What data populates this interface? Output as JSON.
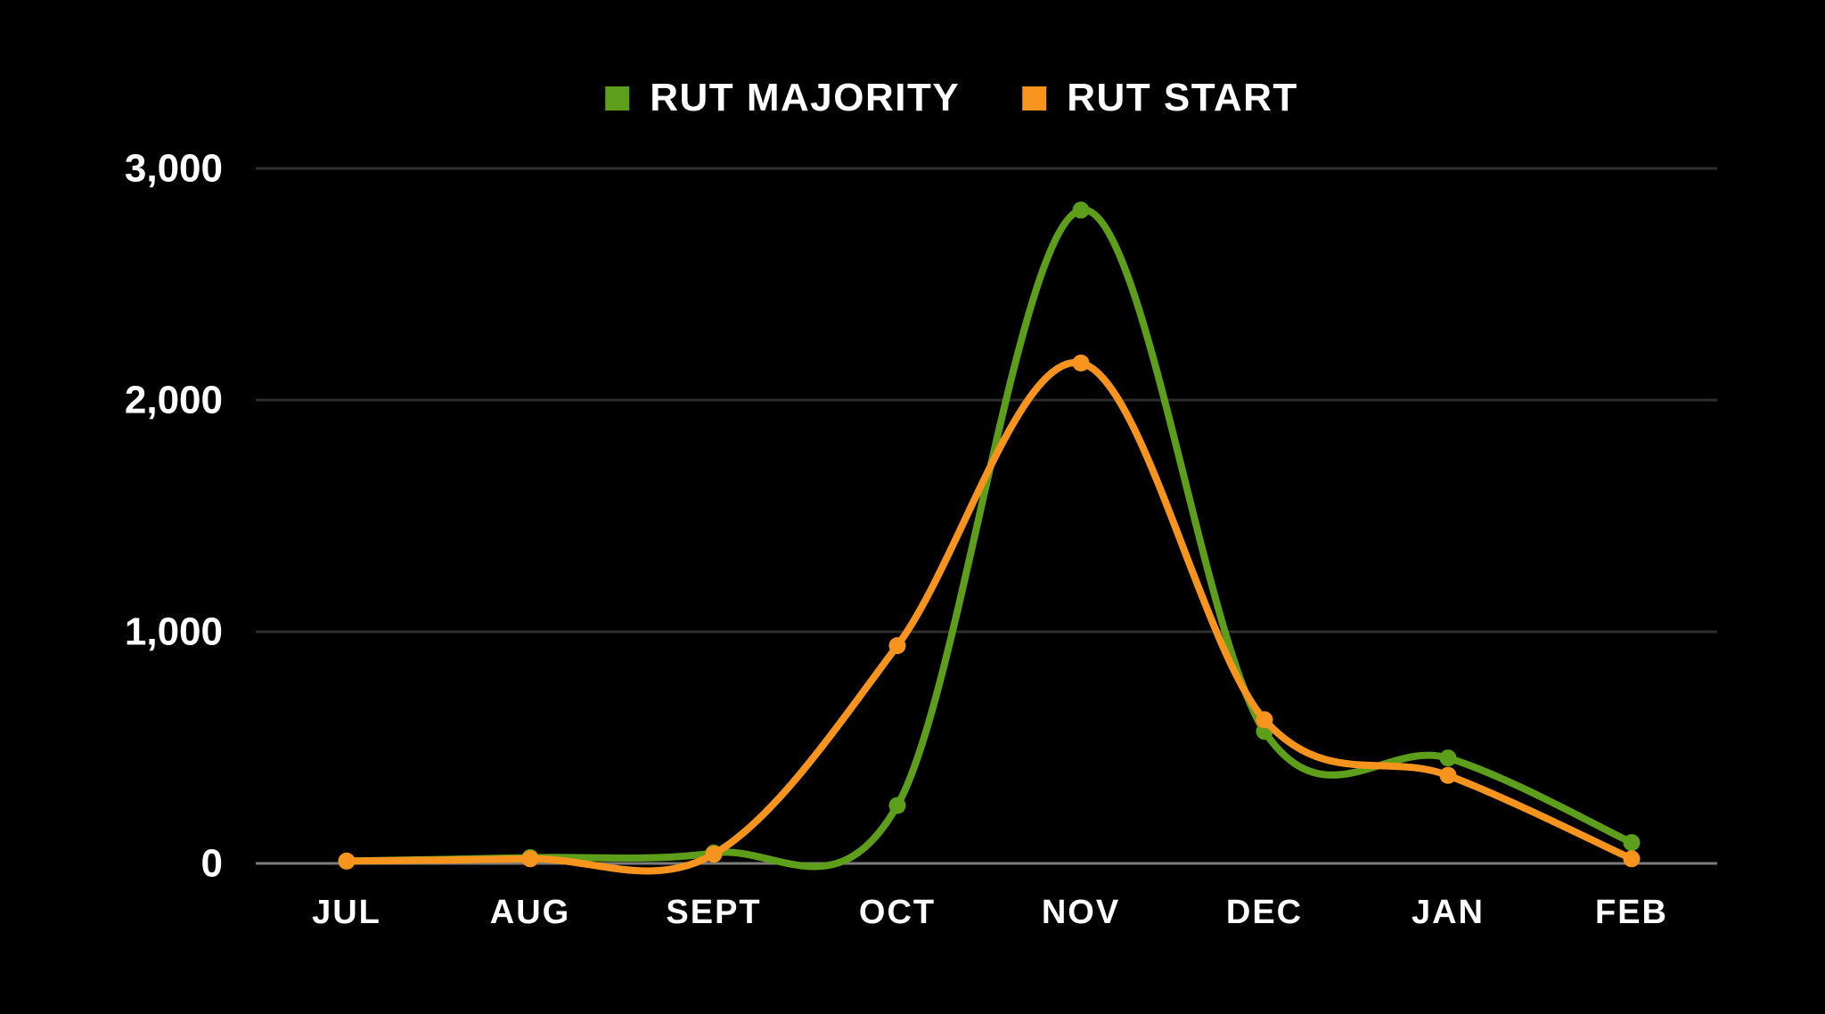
{
  "chart_data": {
    "type": "line",
    "title": "",
    "xlabel": "",
    "ylabel": "",
    "categories": [
      "JUL",
      "AUG",
      "SEPT",
      "OCT",
      "NOV",
      "DEC",
      "JAN",
      "FEB"
    ],
    "series": [
      {
        "name": "RUT MAJORITY",
        "color": "#5d9e1a",
        "values": [
          10,
          25,
          45,
          250,
          2820,
          570,
          455,
          90
        ]
      },
      {
        "name": "RUT START",
        "color": "#f7941e",
        "values": [
          10,
          20,
          40,
          940,
          2160,
          620,
          380,
          20
        ]
      }
    ],
    "ylim": [
      0,
      3000
    ],
    "yticks": [
      0,
      1000,
      2000,
      3000
    ],
    "ytick_labels": [
      "0",
      "1,000",
      "2,000",
      "3,000"
    ],
    "grid": true,
    "legend_position": "top",
    "line_smoothing": "spline",
    "marker": "circle",
    "colors": {
      "background": "#000000",
      "text": "#ffffff",
      "gridline": "#2e2e2e",
      "zero_line": "#7c7c7c"
    }
  }
}
